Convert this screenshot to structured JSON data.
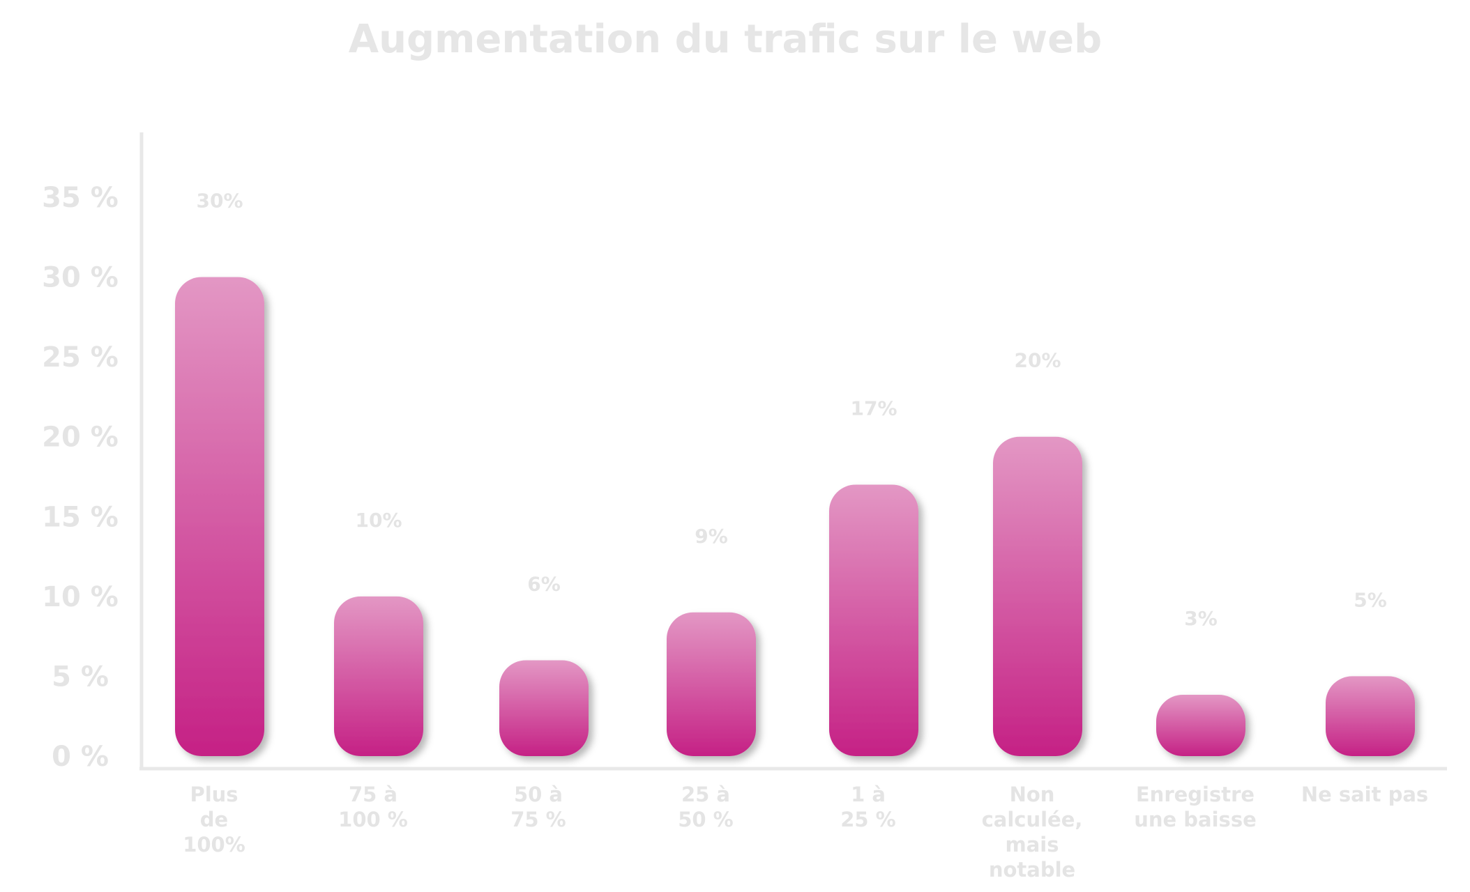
{
  "chart_data": {
    "type": "bar",
    "title": "Augmentation du trafic sur le web",
    "categories": [
      "Plus de 100%",
      "75 à 100 %",
      "50 à 75 %",
      "25 à 50 %",
      "1 à 25 %",
      "Non calculée, mais notable",
      "Enregistre une baisse",
      "Ne sait pas"
    ],
    "category_lines": [
      [
        "Plus",
        "de",
        "100%"
      ],
      [
        "75 à",
        "100 %"
      ],
      [
        "50 à",
        "75 %"
      ],
      [
        "25 à",
        "50 %"
      ],
      [
        "1 à",
        "25 %"
      ],
      [
        "Non",
        "calculée,",
        "mais",
        "notable"
      ],
      [
        "Enregistre",
        "une baisse"
      ],
      [
        "Ne sait pas"
      ]
    ],
    "values": [
      30,
      10,
      6,
      9,
      17,
      20,
      3,
      5
    ],
    "value_labels": [
      "30%",
      "10%",
      "6%",
      "9%",
      "17%",
      "20%",
      "3%",
      "5%"
    ],
    "yticks": [
      0,
      5,
      10,
      15,
      20,
      25,
      30,
      35
    ],
    "ytick_labels": [
      "0 %",
      "5 %",
      "10 %",
      "15 %",
      "20 %",
      "25 %",
      "30 %",
      "35 %"
    ],
    "ylim": [
      0,
      35
    ],
    "xlabel": "",
    "ylabel": "",
    "grid": false,
    "legend": "none",
    "colors": {
      "bar_top": "#e397c4",
      "bar_bottom": "#c52185",
      "axis": "#e8e8e8",
      "text": "#e4e4e4"
    }
  }
}
